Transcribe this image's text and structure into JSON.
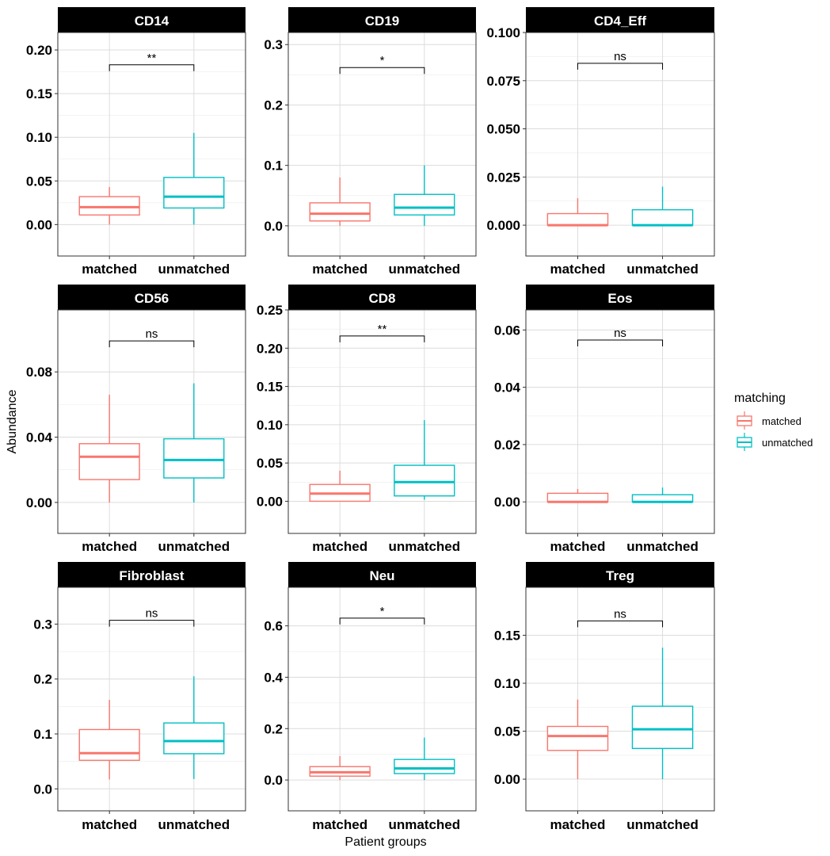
{
  "chart_data": {
    "type": "boxplot",
    "ylabel": "Abundance",
    "xlabel": "Patient groups",
    "categories": [
      "matched",
      "unmatched"
    ],
    "legend": {
      "title": "matching",
      "position": "right",
      "items": [
        {
          "label": "matched",
          "color": "#F8766D"
        },
        {
          "label": "unmatched",
          "color": "#00BFC4"
        }
      ]
    },
    "grid": true,
    "panels": [
      {
        "title": "CD14",
        "ylim": [
          -0.036,
          0.22
        ],
        "yticks": [
          0.0,
          0.05,
          0.1,
          0.15,
          0.2
        ],
        "ytick_labels": [
          "0.00",
          "0.05",
          "0.10",
          "0.15",
          "0.20"
        ],
        "significance": "**",
        "bracket_y": 0.183,
        "boxes": [
          {
            "group": "matched",
            "min": 0.0,
            "q1": 0.011,
            "median": 0.02,
            "q3": 0.032,
            "max": 0.043
          },
          {
            "group": "unmatched",
            "min": 0.0,
            "q1": 0.019,
            "median": 0.032,
            "q3": 0.054,
            "max": 0.105
          }
        ]
      },
      {
        "title": "CD19",
        "ylim": [
          -0.05,
          0.32
        ],
        "yticks": [
          0.0,
          0.1,
          0.2,
          0.3
        ],
        "ytick_labels": [
          "0.0",
          "0.1",
          "0.2",
          "0.3"
        ],
        "significance": "*",
        "bracket_y": 0.262,
        "boxes": [
          {
            "group": "matched",
            "min": 0.0,
            "q1": 0.008,
            "median": 0.02,
            "q3": 0.038,
            "max": 0.08
          },
          {
            "group": "unmatched",
            "min": 0.0,
            "q1": 0.018,
            "median": 0.03,
            "q3": 0.052,
            "max": 0.1
          }
        ]
      },
      {
        "title": "CD4_Eff",
        "ylim": [
          -0.016,
          0.1
        ],
        "yticks": [
          0.0,
          0.025,
          0.05,
          0.075,
          0.1
        ],
        "ytick_labels": [
          "0.000",
          "0.025",
          "0.050",
          "0.075",
          "0.100"
        ],
        "significance": "ns",
        "bracket_y": 0.084,
        "boxes": [
          {
            "group": "matched",
            "min": 0.0,
            "q1": 0.0,
            "median": 0.0,
            "q3": 0.006,
            "max": 0.014
          },
          {
            "group": "unmatched",
            "min": 0.0,
            "q1": 0.0,
            "median": 0.0,
            "q3": 0.008,
            "max": 0.02
          }
        ]
      },
      {
        "title": "CD56",
        "ylim": [
          -0.019,
          0.118
        ],
        "yticks": [
          0.0,
          0.04,
          0.08
        ],
        "ytick_labels": [
          "0.00",
          "0.04",
          "0.08"
        ],
        "significance": "ns",
        "bracket_y": 0.099,
        "boxes": [
          {
            "group": "matched",
            "min": 0.0,
            "q1": 0.014,
            "median": 0.028,
            "q3": 0.036,
            "max": 0.066
          },
          {
            "group": "unmatched",
            "min": 0.0,
            "q1": 0.015,
            "median": 0.026,
            "q3": 0.039,
            "max": 0.073
          }
        ]
      },
      {
        "title": "CD8",
        "ylim": [
          -0.042,
          0.25
        ],
        "yticks": [
          0.0,
          0.05,
          0.1,
          0.15,
          0.2,
          0.25
        ],
        "ytick_labels": [
          "0.00",
          "0.05",
          "0.10",
          "0.15",
          "0.20",
          "0.25"
        ],
        "significance": "**",
        "bracket_y": 0.216,
        "boxes": [
          {
            "group": "matched",
            "min": 0.0,
            "q1": 0.0,
            "median": 0.01,
            "q3": 0.022,
            "max": 0.04
          },
          {
            "group": "unmatched",
            "min": 0.002,
            "q1": 0.007,
            "median": 0.025,
            "q3": 0.047,
            "max": 0.106
          }
        ]
      },
      {
        "title": "Eos",
        "ylim": [
          -0.011,
          0.067
        ],
        "yticks": [
          0.0,
          0.02,
          0.04,
          0.06
        ],
        "ytick_labels": [
          "0.00",
          "0.02",
          "0.04",
          "0.06"
        ],
        "significance": "ns",
        "bracket_y": 0.0565,
        "boxes": [
          {
            "group": "matched",
            "min": 0.0,
            "q1": 0.0,
            "median": 0.0,
            "q3": 0.003,
            "max": 0.0045
          },
          {
            "group": "unmatched",
            "min": 0.0,
            "q1": 0.0,
            "median": 0.0,
            "q3": 0.0025,
            "max": 0.005
          }
        ]
      },
      {
        "title": "Fibroblast",
        "ylim": [
          -0.04,
          0.367
        ],
        "yticks": [
          0.0,
          0.1,
          0.2,
          0.3
        ],
        "ytick_labels": [
          "0.0",
          "0.1",
          "0.2",
          "0.3"
        ],
        "significance": "ns",
        "bracket_y": 0.307,
        "boxes": [
          {
            "group": "matched",
            "min": 0.017,
            "q1": 0.052,
            "median": 0.065,
            "q3": 0.108,
            "max": 0.162
          },
          {
            "group": "unmatched",
            "min": 0.018,
            "q1": 0.064,
            "median": 0.087,
            "q3": 0.12,
            "max": 0.205
          }
        ]
      },
      {
        "title": "Neu",
        "ylim": [
          -0.12,
          0.75
        ],
        "yticks": [
          0.0,
          0.2,
          0.4,
          0.6
        ],
        "ytick_labels": [
          "0.0",
          "0.2",
          "0.4",
          "0.6"
        ],
        "significance": "*",
        "bracket_y": 0.63,
        "boxes": [
          {
            "group": "matched",
            "min": 0.0,
            "q1": 0.015,
            "median": 0.03,
            "q3": 0.052,
            "max": 0.093
          },
          {
            "group": "unmatched",
            "min": 0.0,
            "q1": 0.025,
            "median": 0.045,
            "q3": 0.08,
            "max": 0.165
          }
        ]
      },
      {
        "title": "Treg",
        "ylim": [
          -0.033,
          0.2
        ],
        "yticks": [
          0.0,
          0.05,
          0.1,
          0.15
        ],
        "ytick_labels": [
          "0.00",
          "0.05",
          "0.10",
          "0.15"
        ],
        "significance": "ns",
        "bracket_y": 0.165,
        "boxes": [
          {
            "group": "matched",
            "min": 0.0,
            "q1": 0.03,
            "median": 0.045,
            "q3": 0.055,
            "max": 0.083
          },
          {
            "group": "unmatched",
            "min": 0.0,
            "q1": 0.032,
            "median": 0.052,
            "q3": 0.076,
            "max": 0.137
          }
        ]
      }
    ]
  }
}
